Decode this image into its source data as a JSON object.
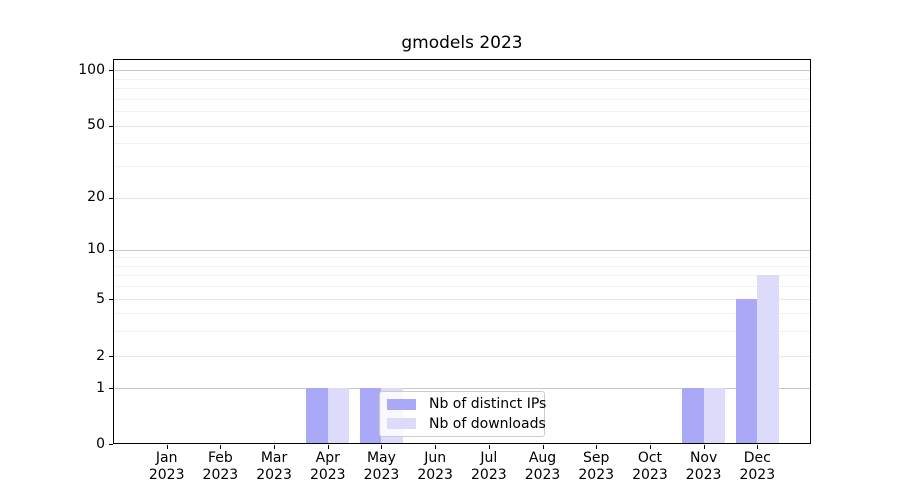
{
  "title": "gmodels 2023",
  "chart_data": {
    "type": "bar",
    "title": "gmodels 2023",
    "categories": [
      "Jan 2023",
      "Feb 2023",
      "Mar 2023",
      "Apr 2023",
      "May 2023",
      "Jun 2023",
      "Jul 2023",
      "Aug 2023",
      "Sep 2023",
      "Oct 2023",
      "Nov 2023",
      "Dec 2023"
    ],
    "series": [
      {
        "name": "Nb of distinct IPs",
        "color": "#a9a9f7",
        "values": [
          0,
          0,
          0,
          1,
          1,
          0,
          0,
          0,
          0,
          0,
          1,
          5
        ]
      },
      {
        "name": "Nb of downloads",
        "color": "#dcdcfa",
        "values": [
          0,
          0,
          0,
          1,
          1,
          0,
          0,
          0,
          0,
          0,
          1,
          7
        ]
      }
    ],
    "yscale": "log-like (0 baseline, log above 1)",
    "ylim": [
      0,
      115
    ],
    "grid": true,
    "legend_position": "lower center"
  },
  "x_axis": {
    "months": [
      "Jan",
      "Feb",
      "Mar",
      "Apr",
      "May",
      "Jun",
      "Jul",
      "Aug",
      "Sep",
      "Oct",
      "Nov",
      "Dec"
    ],
    "year": "2023"
  },
  "y_axis": {
    "ticks": [
      {
        "value": 0,
        "label": "0"
      },
      {
        "value": 1,
        "label": "1"
      },
      {
        "value": 2,
        "label": "2"
      },
      {
        "value": 5,
        "label": "5"
      },
      {
        "value": 10,
        "label": "10"
      },
      {
        "value": 20,
        "label": "20"
      },
      {
        "value": 50,
        "label": "50"
      },
      {
        "value": 100,
        "label": "100"
      }
    ],
    "major_grid_values": [
      1,
      10,
      100
    ],
    "minor_grid_values": [
      3,
      4,
      6,
      7,
      8,
      9,
      30,
      40,
      60,
      70,
      80,
      90
    ]
  },
  "legend": {
    "items": [
      {
        "label": "Nb of distinct IPs",
        "color": "#a9a9f7"
      },
      {
        "label": "Nb of downloads",
        "color": "#dcdcfa"
      }
    ]
  },
  "colors": {
    "bar_distinct_ips": "#a9a9f7",
    "bar_downloads": "#dcdcfa",
    "major_grid": "#c8c8c8",
    "mid_grid": "#e7e7e7",
    "minor_grid": "#f1f1f1",
    "spine": "#000000",
    "text": "#000000",
    "background": "#ffffff"
  }
}
